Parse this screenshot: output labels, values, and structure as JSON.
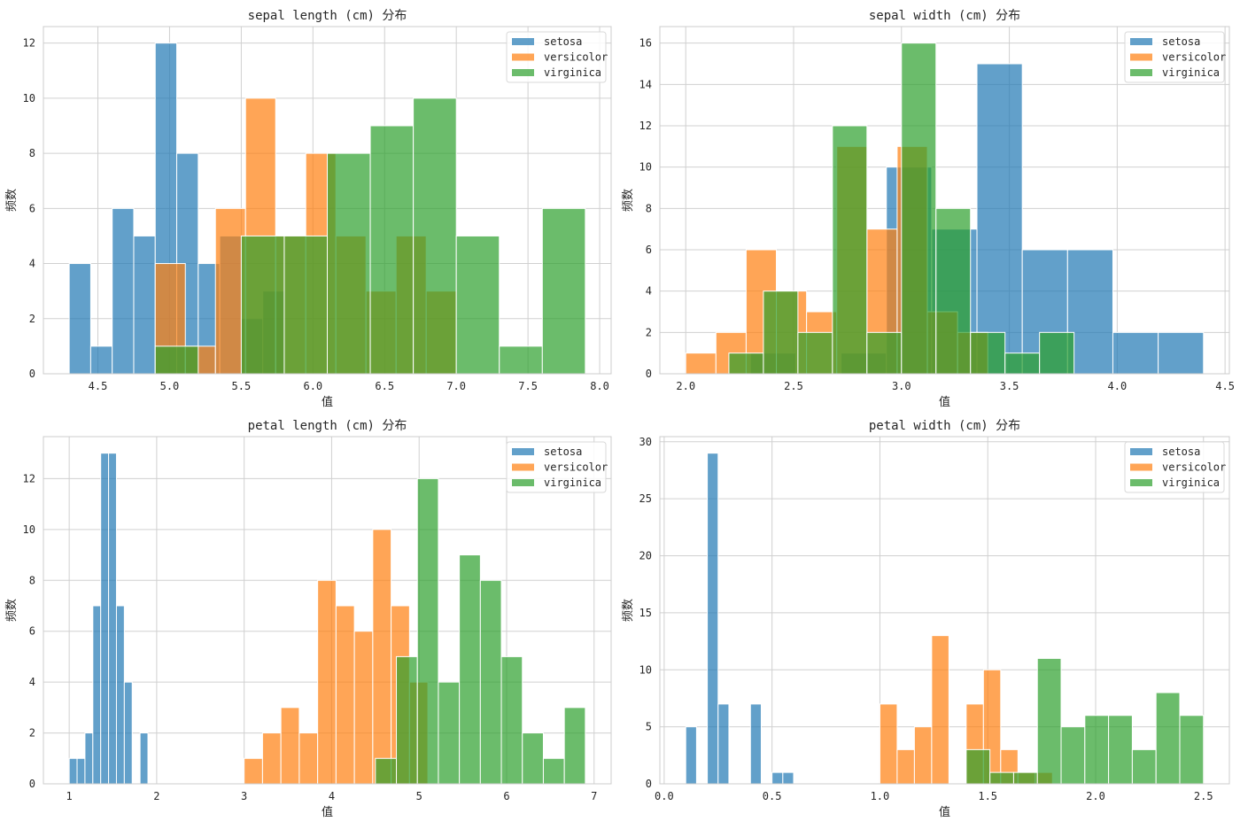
{
  "legend_labels": [
    "setosa",
    "versicolor",
    "virginica"
  ],
  "colors": {
    "setosa": "#1f77b4",
    "versicolor": "#ff7f0e",
    "virginica": "#2ca02c"
  },
  "chart_data": [
    {
      "type": "bar",
      "title": "sepal length (cm) 分布",
      "xlabel": "值",
      "ylabel": "频数",
      "xlim": [
        4.12,
        8.08
      ],
      "ylim": [
        0,
        12.6
      ],
      "xticks": [
        4.5,
        5.0,
        5.5,
        6.0,
        6.5,
        7.0,
        7.5,
        8.0
      ],
      "xtick_labels": [
        "4.5",
        "5.0",
        "5.5",
        "6.0",
        "6.5",
        "7.0",
        "7.5",
        "8.0"
      ],
      "yticks": [
        0,
        2,
        4,
        6,
        8,
        10,
        12
      ],
      "grid": true,
      "legend": "top-right",
      "series": [
        {
          "name": "setosa",
          "range": [
            4.3,
            5.8
          ],
          "bins": 10,
          "values": [
            4,
            1,
            6,
            5,
            12,
            8,
            4,
            5,
            2,
            3
          ]
        },
        {
          "name": "versicolor",
          "range": [
            4.9,
            7.0
          ],
          "bins": 10,
          "values": [
            4,
            1,
            6,
            10,
            5,
            8,
            5,
            3,
            5,
            3
          ]
        },
        {
          "name": "virginica",
          "range": [
            4.9,
            7.9
          ],
          "bins": 10,
          "values": [
            1,
            0,
            5,
            5,
            8,
            9,
            10,
            5,
            1,
            6
          ]
        }
      ]
    },
    {
      "type": "bar",
      "title": "sepal width (cm) 分布",
      "xlabel": "值",
      "ylabel": "频数",
      "xlim": [
        1.88,
        4.52
      ],
      "ylim": [
        0,
        16.8
      ],
      "xticks": [
        2.0,
        2.5,
        3.0,
        3.5,
        4.0,
        4.5
      ],
      "xtick_labels": [
        "2.0",
        "2.5",
        "3.0",
        "3.5",
        "4.0",
        "4.5"
      ],
      "yticks": [
        0,
        2,
        4,
        6,
        8,
        10,
        12,
        14,
        16
      ],
      "grid": true,
      "legend": "top-right",
      "series": [
        {
          "name": "setosa",
          "range": [
            2.3,
            4.4
          ],
          "bins": 10,
          "values": [
            1,
            0,
            1,
            10,
            7,
            15,
            6,
            6,
            2,
            2
          ]
        },
        {
          "name": "versicolor",
          "range": [
            2.0,
            3.4
          ],
          "bins": 10,
          "values": [
            1,
            2,
            6,
            4,
            3,
            11,
            7,
            11,
            3,
            2
          ]
        },
        {
          "name": "virginica",
          "range": [
            2.2,
            3.8
          ],
          "bins": 10,
          "values": [
            1,
            4,
            2,
            12,
            2,
            16,
            8,
            2,
            1,
            2
          ]
        }
      ]
    },
    {
      "type": "bar",
      "title": "petal length (cm) 分布",
      "xlabel": "值",
      "ylabel": "频数",
      "xlim": [
        0.705,
        7.195
      ],
      "ylim": [
        0,
        13.65
      ],
      "xticks": [
        1,
        2,
        3,
        4,
        5,
        6,
        7
      ],
      "xtick_labels": [
        "1",
        "2",
        "3",
        "4",
        "5",
        "6",
        "7"
      ],
      "yticks": [
        0,
        2,
        4,
        6,
        8,
        10,
        12
      ],
      "grid": true,
      "legend": "top-right",
      "series": [
        {
          "name": "setosa",
          "range": [
            1.0,
            1.9
          ],
          "bins": 10,
          "values": [
            1,
            1,
            2,
            7,
            13,
            13,
            7,
            4,
            0,
            2
          ]
        },
        {
          "name": "versicolor",
          "range": [
            3.0,
            5.1
          ],
          "bins": 10,
          "values": [
            1,
            2,
            3,
            2,
            8,
            7,
            6,
            10,
            7,
            4
          ]
        },
        {
          "name": "virginica",
          "range": [
            4.5,
            6.9
          ],
          "bins": 10,
          "values": [
            1,
            5,
            12,
            4,
            9,
            8,
            5,
            2,
            1,
            3
          ]
        }
      ]
    },
    {
      "type": "bar",
      "title": "petal width (cm) 分布",
      "xlabel": "值",
      "ylabel": "频数",
      "xlim": [
        -0.02,
        2.62
      ],
      "ylim": [
        0,
        30.45
      ],
      "xticks": [
        0.0,
        0.5,
        1.0,
        1.5,
        2.0,
        2.5
      ],
      "xtick_labels": [
        "0.0",
        "0.5",
        "1.0",
        "1.5",
        "2.0",
        "2.5"
      ],
      "yticks": [
        0,
        5,
        10,
        15,
        20,
        25,
        30
      ],
      "grid": true,
      "legend": "top-right",
      "series": [
        {
          "name": "setosa",
          "range": [
            0.1,
            0.6
          ],
          "bins": 10,
          "values": [
            5,
            0,
            29,
            7,
            0,
            0,
            7,
            0,
            1,
            1
          ]
        },
        {
          "name": "versicolor",
          "range": [
            1.0,
            1.8
          ],
          "bins": 10,
          "values": [
            7,
            3,
            5,
            13,
            0,
            7,
            10,
            3,
            1,
            1
          ]
        },
        {
          "name": "virginica",
          "range": [
            1.4,
            2.5
          ],
          "bins": 10,
          "values": [
            3,
            1,
            1,
            11,
            5,
            6,
            6,
            3,
            8,
            6
          ]
        }
      ]
    }
  ]
}
